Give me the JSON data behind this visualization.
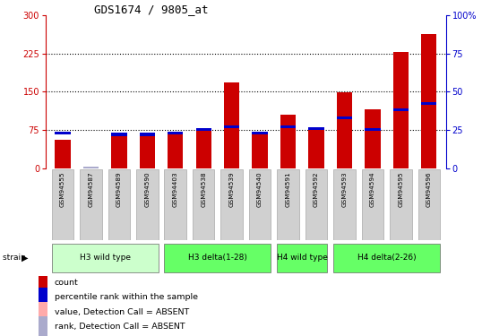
{
  "title": "GDS1674 / 9805_at",
  "samples": [
    "GSM94555",
    "GSM94587",
    "GSM94589",
    "GSM94590",
    "GSM94403",
    "GSM94538",
    "GSM94539",
    "GSM94540",
    "GSM94591",
    "GSM94592",
    "GSM94593",
    "GSM94594",
    "GSM94595",
    "GSM94596"
  ],
  "count_values": [
    55,
    0,
    68,
    65,
    68,
    78,
    168,
    68,
    105,
    80,
    148,
    115,
    228,
    262
  ],
  "count_absent": [
    false,
    true,
    false,
    false,
    false,
    false,
    false,
    false,
    false,
    false,
    false,
    false,
    false,
    false
  ],
  "rank_values": [
    23,
    0,
    22,
    22,
    23,
    25,
    27,
    23,
    27,
    26,
    33,
    25,
    38,
    42
  ],
  "rank_absent": [
    false,
    true,
    false,
    false,
    false,
    false,
    false,
    false,
    false,
    false,
    false,
    false,
    false,
    false
  ],
  "yticks_left": [
    0,
    75,
    150,
    225,
    300
  ],
  "yticks_right": [
    0,
    25,
    50,
    75,
    100
  ],
  "group_defs": [
    {
      "label": "H3 wild type",
      "start": 0,
      "end": 3,
      "color": "#ccffcc"
    },
    {
      "label": "H3 delta(1-28)",
      "start": 4,
      "end": 7,
      "color": "#66ff66"
    },
    {
      "label": "H4 wild type",
      "start": 8,
      "end": 9,
      "color": "#66ff66"
    },
    {
      "label": "H4 delta(2-26)",
      "start": 10,
      "end": 13,
      "color": "#66ff66"
    }
  ],
  "bar_width": 0.55,
  "count_color": "#cc0000",
  "count_absent_color": "#ffaaaa",
  "rank_color": "#0000cc",
  "rank_absent_color": "#aaaacc",
  "left_axis_color": "#cc0000",
  "right_axis_color": "#0000cc",
  "legend_items": [
    {
      "color": "#cc0000",
      "label": "count"
    },
    {
      "color": "#0000cc",
      "label": "percentile rank within the sample"
    },
    {
      "color": "#ffaaaa",
      "label": "value, Detection Call = ABSENT"
    },
    {
      "color": "#aaaacc",
      "label": "rank, Detection Call = ABSENT"
    }
  ]
}
